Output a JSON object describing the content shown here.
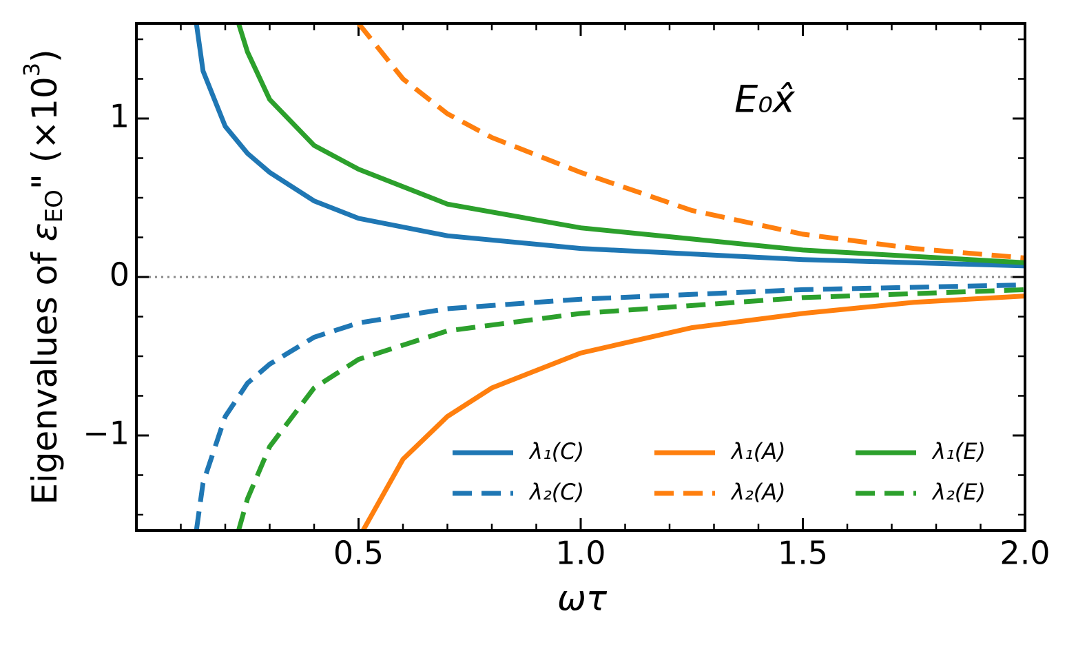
{
  "chart_data": {
    "type": "line",
    "xlabel": "ωτ",
    "ylabel_parts": [
      "Eigenvalues of ",
      "ε",
      "EO",
      "\" (×10",
      "3",
      ")"
    ],
    "annotation": "E₀x̂",
    "xlim": [
      0,
      2.0
    ],
    "ylim": [
      -1.6,
      1.6
    ],
    "xticks": [
      0.5,
      {
        "value": 1.0,
        "label": "1.0"
      },
      1.5,
      {
        "value": 2.0,
        "label": "2.0"
      }
    ],
    "yticks": [
      {
        "value": -1,
        "label": "−1"
      },
      0,
      1
    ],
    "xminorticks": [
      0.1,
      0.2,
      0.3,
      0.4,
      0.6,
      0.7,
      0.8,
      0.9,
      1.1,
      1.2,
      1.3,
      1.4,
      1.6,
      1.7,
      1.8,
      1.9
    ],
    "yminorticks": [
      -1.5,
      -1.25,
      -0.75,
      -0.5,
      -0.25,
      0.25,
      0.5,
      0.75,
      1.25,
      1.5
    ],
    "hline": 0,
    "legend": "lower right",
    "series": [
      {
        "name": "λ₁(C)",
        "color": "#1f77b4",
        "linestyle": "solid",
        "x": [
          0.135,
          0.15,
          0.2,
          0.25,
          0.3,
          0.4,
          0.5,
          0.7,
          1.0,
          1.5,
          2.0
        ],
        "values": [
          1.6,
          1.3,
          0.95,
          0.78,
          0.66,
          0.48,
          0.37,
          0.26,
          0.18,
          0.11,
          0.07
        ]
      },
      {
        "name": "λ₂(C)",
        "color": "#1f77b4",
        "linestyle": "dashed",
        "x": [
          0.135,
          0.15,
          0.2,
          0.25,
          0.3,
          0.4,
          0.5,
          0.7,
          1.0,
          1.5,
          2.0
        ],
        "values": [
          -1.6,
          -1.3,
          -0.88,
          -0.67,
          -0.55,
          -0.38,
          -0.29,
          -0.2,
          -0.14,
          -0.08,
          -0.05
        ]
      },
      {
        "name": "λ₁(A)",
        "color": "#ff7f0e",
        "linestyle": "solid",
        "x": [
          0.51,
          0.6,
          0.7,
          0.8,
          1.0,
          1.25,
          1.5,
          1.75,
          2.0
        ],
        "values": [
          -1.6,
          -1.15,
          -0.88,
          -0.7,
          -0.48,
          -0.32,
          -0.23,
          -0.16,
          -0.12
        ]
      },
      {
        "name": "λ₂(A)",
        "color": "#ff7f0e",
        "linestyle": "dashed",
        "x": [
          0.5,
          0.6,
          0.7,
          0.8,
          1.0,
          1.25,
          1.5,
          1.75,
          2.0
        ],
        "values": [
          1.6,
          1.25,
          1.03,
          0.88,
          0.66,
          0.42,
          0.27,
          0.18,
          0.12
        ]
      },
      {
        "name": "λ₁(E)",
        "color": "#2ca02c",
        "linestyle": "solid",
        "x": [
          0.23,
          0.25,
          0.3,
          0.4,
          0.5,
          0.7,
          1.0,
          1.5,
          2.0
        ],
        "values": [
          1.6,
          1.42,
          1.12,
          0.83,
          0.68,
          0.46,
          0.31,
          0.17,
          0.09
        ]
      },
      {
        "name": "λ₂(E)",
        "color": "#2ca02c",
        "linestyle": "dashed",
        "x": [
          0.23,
          0.25,
          0.3,
          0.4,
          0.5,
          0.7,
          1.0,
          1.5,
          2.0
        ],
        "values": [
          -1.6,
          -1.4,
          -1.07,
          -0.7,
          -0.52,
          -0.34,
          -0.23,
          -0.13,
          -0.08
        ]
      }
    ]
  }
}
